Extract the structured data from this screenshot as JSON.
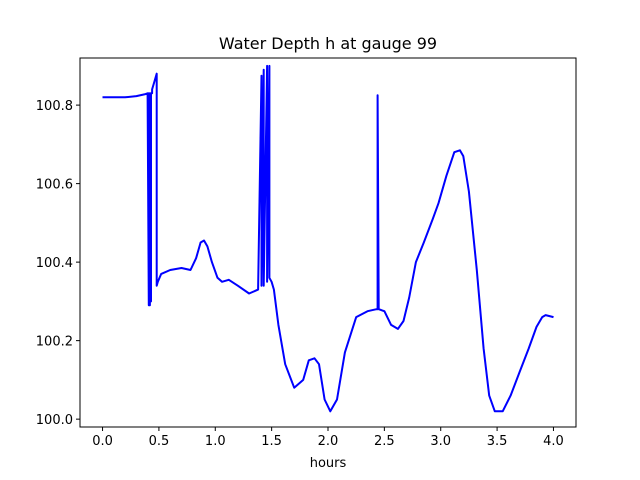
{
  "chart_data": {
    "type": "line",
    "title": "Water Depth h at gauge 99",
    "xlabel": "hours",
    "ylabel": "",
    "xlim": [
      -0.2,
      4.2
    ],
    "ylim": [
      99.98,
      100.92
    ],
    "xticks": [
      0.0,
      0.5,
      1.0,
      1.5,
      2.0,
      2.5,
      3.0,
      3.5,
      4.0
    ],
    "xtick_labels": [
      "0.0",
      "0.5",
      "1.0",
      "1.5",
      "2.0",
      "2.5",
      "3.0",
      "3.5",
      "4.0"
    ],
    "yticks": [
      100.0,
      100.2,
      100.4,
      100.6,
      100.8
    ],
    "ytick_labels": [
      "100.0",
      "100.2",
      "100.4",
      "100.6",
      "100.8"
    ],
    "grid": false,
    "series": [
      {
        "color": "#0000ff",
        "x": [
          0.0,
          0.2,
          0.3,
          0.38,
          0.4,
          0.41,
          0.41,
          0.42,
          0.42,
          0.43,
          0.43,
          0.44,
          0.44,
          0.46,
          0.48,
          0.48,
          0.49,
          0.52,
          0.6,
          0.7,
          0.78,
          0.83,
          0.87,
          0.9,
          0.93,
          0.97,
          1.02,
          1.06,
          1.12,
          1.2,
          1.3,
          1.38,
          1.41,
          1.41,
          1.43,
          1.43,
          1.46,
          1.46,
          1.48,
          1.48,
          1.5,
          1.52,
          1.56,
          1.62,
          1.7,
          1.78,
          1.83,
          1.88,
          1.92,
          1.97,
          2.02,
          2.08,
          2.15,
          2.25,
          2.35,
          2.43,
          2.44,
          2.44,
          2.45,
          2.45,
          2.5,
          2.56,
          2.62,
          2.67,
          2.72,
          2.78,
          2.85,
          2.93,
          2.98,
          3.05,
          3.12,
          3.17,
          3.2,
          3.25,
          3.32,
          3.38,
          3.43,
          3.48,
          3.55,
          3.62,
          3.7,
          3.78,
          3.85,
          3.9,
          3.93,
          4.0
        ],
        "y": [
          100.82,
          100.82,
          100.823,
          100.828,
          100.83,
          100.29,
          100.83,
          100.29,
          100.83,
          100.3,
          100.83,
          100.83,
          100.84,
          100.86,
          100.88,
          100.34,
          100.35,
          100.37,
          100.38,
          100.385,
          100.38,
          100.41,
          100.45,
          100.455,
          100.44,
          100.4,
          100.36,
          100.35,
          100.355,
          100.34,
          100.32,
          100.33,
          100.875,
          100.34,
          100.89,
          100.34,
          100.9,
          100.35,
          100.9,
          100.36,
          100.35,
          100.33,
          100.24,
          100.14,
          100.08,
          100.1,
          100.15,
          100.155,
          100.14,
          100.05,
          100.02,
          100.05,
          100.17,
          100.26,
          100.275,
          100.28,
          100.28,
          100.825,
          100.28,
          100.28,
          100.275,
          100.24,
          100.23,
          100.25,
          100.31,
          100.4,
          100.45,
          100.51,
          100.55,
          100.62,
          100.68,
          100.685,
          100.67,
          100.58,
          100.38,
          100.18,
          100.06,
          100.02,
          100.02,
          100.06,
          100.12,
          100.18,
          100.235,
          100.26,
          100.265,
          100.26
        ]
      }
    ]
  }
}
